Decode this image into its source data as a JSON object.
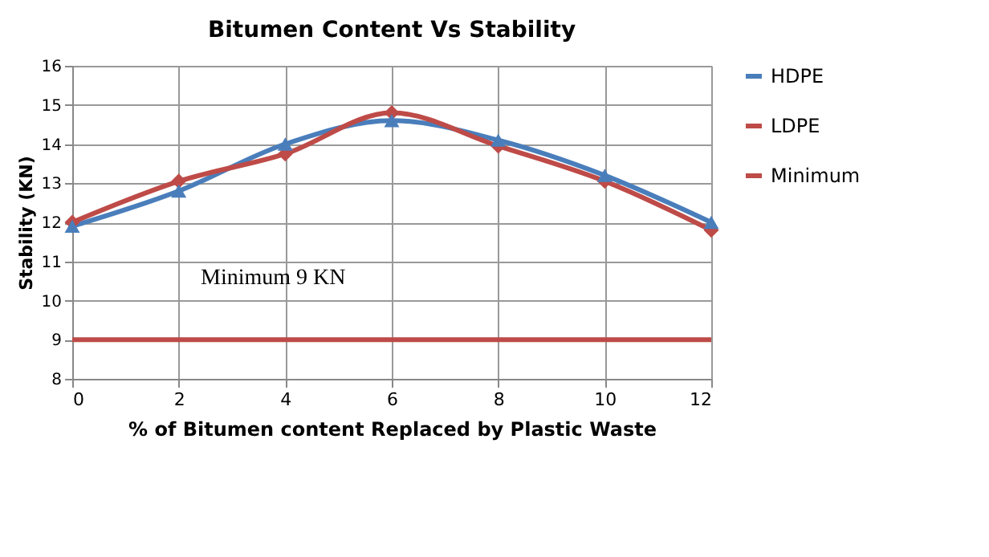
{
  "chart_data": {
    "type": "line",
    "title": "Bitumen Content Vs Stability",
    "xlabel": "% of Bitumen content Replaced by Plastic Waste",
    "ylabel": "Stability (KN)",
    "x": [
      0,
      2,
      4,
      6,
      8,
      10,
      12
    ],
    "series": [
      {
        "name": "HDPE",
        "color": "#4a7ebb",
        "marker": "triangle",
        "values": [
          11.9,
          12.8,
          14.0,
          14.6,
          14.1,
          13.2,
          12.0
        ]
      },
      {
        "name": "LDPE",
        "color": "#be4b48",
        "marker": "diamond",
        "values": [
          12.0,
          13.05,
          13.75,
          14.8,
          13.95,
          13.05,
          11.8
        ]
      },
      {
        "name": "Minimum",
        "color": "#be4b48",
        "marker": "none",
        "values": [
          9,
          9,
          9,
          9,
          9,
          9,
          9
        ]
      }
    ],
    "xlim": [
      0,
      12
    ],
    "xticks": [
      0,
      2,
      4,
      6,
      8,
      10,
      12
    ],
    "ylim": [
      8,
      16
    ],
    "yticks": [
      8,
      9,
      10,
      11,
      12,
      13,
      14,
      15,
      16
    ],
    "grid": true,
    "legend": "right",
    "line_style": "solid",
    "annotations": [
      "Minimum 9 KN"
    ]
  }
}
